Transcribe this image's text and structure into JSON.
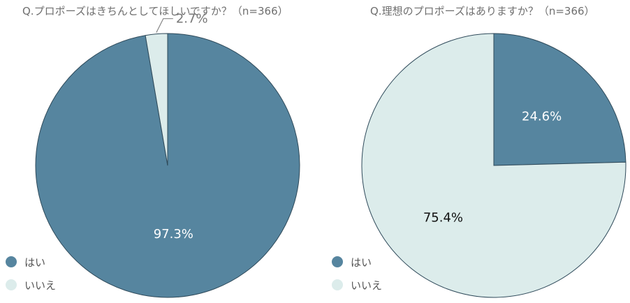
{
  "chart_data": [
    {
      "type": "pie",
      "title": "Q.プロポーズはきちんとしてほしいですか？（n=366）",
      "categories": [
        "はい",
        "いいえ"
      ],
      "values": [
        97.3,
        2.7
      ],
      "value_labels": [
        "97.3%",
        "2.7%"
      ],
      "colors": [
        "#56859f",
        "#dceceb"
      ],
      "legend": "bottom-left"
    },
    {
      "type": "pie",
      "title": "Q.理想のプロポーズはありますか？（n=366）",
      "categories": [
        "はい",
        "いいえ"
      ],
      "values": [
        24.6,
        75.4
      ],
      "value_labels": [
        "24.6%",
        "75.4%"
      ],
      "colors": [
        "#56859f",
        "#dceceb"
      ],
      "legend": "bottom-left"
    }
  ]
}
